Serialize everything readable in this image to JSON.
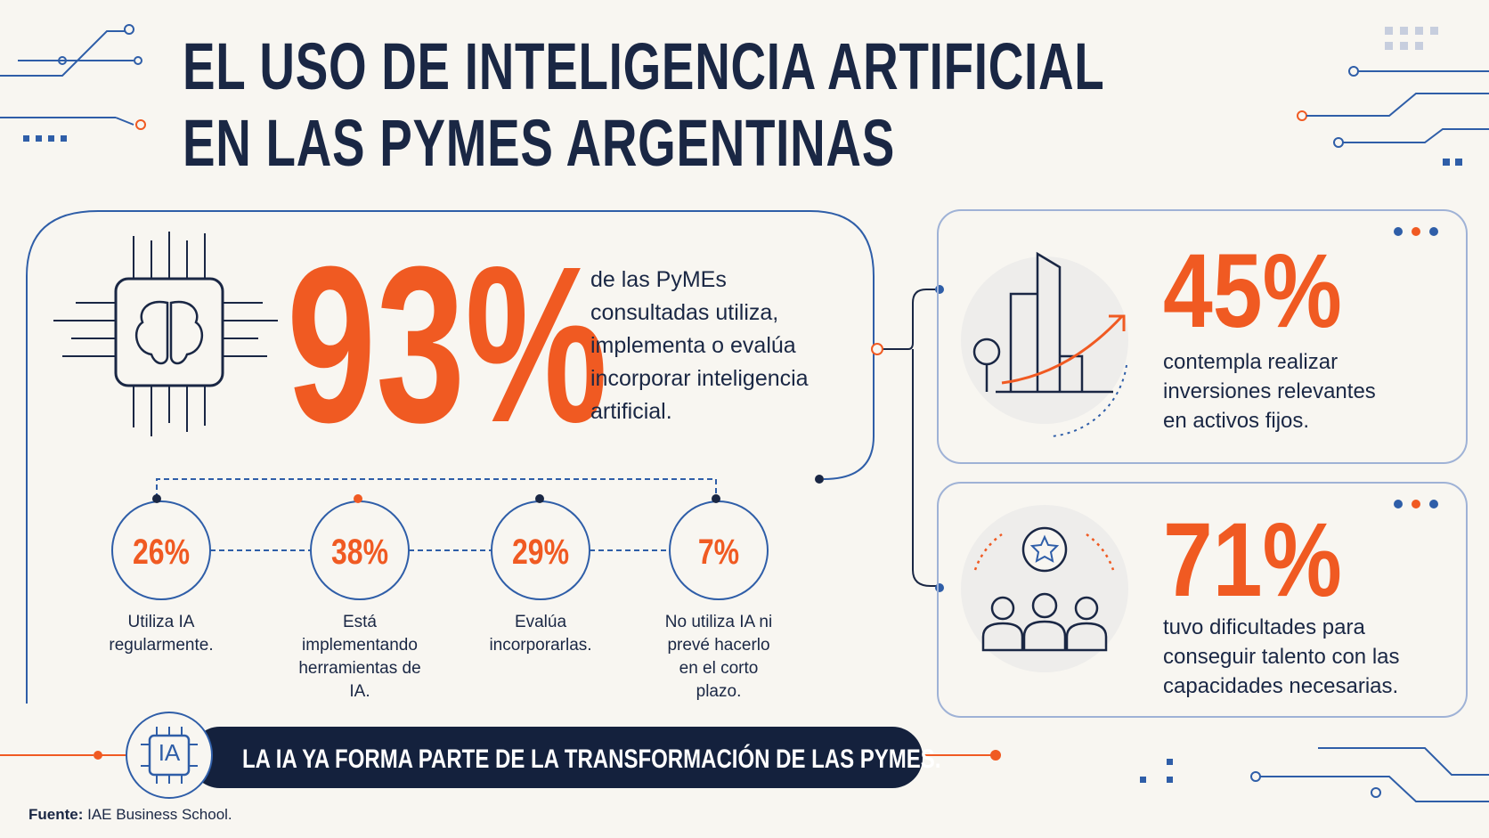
{
  "header": {
    "title_lines": [
      "EL USO DE INTELIGENCIA ARTIFICIAL",
      "EN LAS PYMES ARGENTINAS"
    ]
  },
  "main": {
    "value": "93%",
    "text": "de las PyMEs consultadas utiliza, implementa o evalúa incorporar inteligencia artificial."
  },
  "breakdown": [
    {
      "value": "26%",
      "label": "Utiliza IA regularmente."
    },
    {
      "value": "38%",
      "label": "Está implementando herramientas de IA."
    },
    {
      "value": "29%",
      "label": "Evalúa incorporarlas."
    },
    {
      "value": "7%",
      "label": "No utiliza IA ni prevé hacerlo en el corto plazo."
    }
  ],
  "cards": [
    {
      "value": "45%",
      "text": "contempla realizar inversiones relevantes en activos fijos."
    },
    {
      "value": "71%",
      "text": "tuvo dificultades para conseguir talento con las capacidades necesarias."
    }
  ],
  "banner": {
    "icon": "IA",
    "text": "LA IA YA FORMA PARTE DE LA TRANSFORMACIÓN DE LAS PYMES."
  },
  "source": {
    "label": "Fuente:",
    "text": "IAE Business School."
  }
}
